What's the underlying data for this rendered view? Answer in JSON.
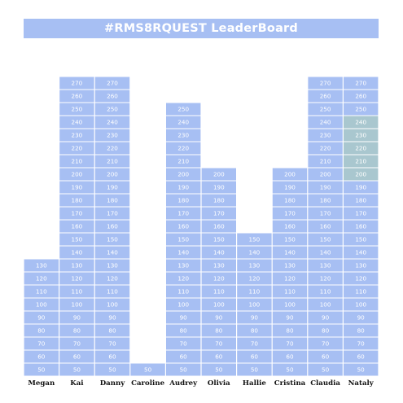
{
  "title": "#RMS8RQUEST LeaderBoard",
  "chart_data": {
    "type": "bar",
    "title": "#RMS8RQUEST LeaderBoard",
    "categories": [
      "Megan",
      "Kai",
      "Danny",
      "Caroline",
      "Audrey",
      "Olivia",
      "Hallie",
      "Cristina",
      "Claudia",
      "Nataly"
    ],
    "values": [
      130,
      270,
      270,
      50,
      250,
      200,
      150,
      200,
      270,
      270
    ],
    "step": 10,
    "min": 50,
    "ylim": [
      50,
      270
    ],
    "grid": false,
    "legend": "none"
  },
  "colors": {
    "title_bg": "#a7bff3",
    "cell": "#a7bff3",
    "cell_highlight": "#a9c7cf",
    "cell_text": "#ffffff",
    "cell_border": "#ffffff"
  }
}
